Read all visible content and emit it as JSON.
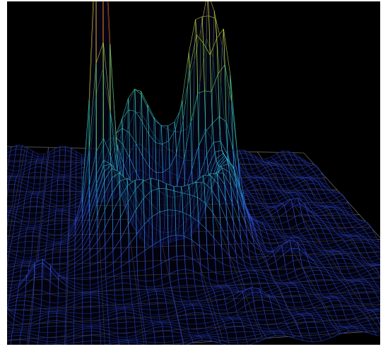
{
  "chart_data": {
    "type": "surface",
    "title": "",
    "xlabel": "",
    "ylabel": "",
    "zlabel": "",
    "grid": true,
    "background": "#000000",
    "floor_grid_color": "#8a8a8a",
    "colormap": [
      "#1a2a8a",
      "#3a5cff",
      "#30c0ff",
      "#40e0a0",
      "#c8f03c",
      "#ffd020",
      "#ff3010"
    ],
    "surface": {
      "x_range": [
        -1,
        1
      ],
      "y_range": [
        -1,
        1
      ],
      "z_range": [
        0,
        1
      ],
      "peaks": [
        {
          "x": -0.28,
          "y": 0.18,
          "height": 1.0,
          "width": 0.035
        },
        {
          "x": 0.28,
          "y": 0.38,
          "height": 0.55,
          "width": 0.04
        },
        {
          "x": 0.34,
          "y": 0.3,
          "height": 0.48,
          "width": 0.045
        },
        {
          "x": 0.2,
          "y": 0.32,
          "height": 0.38,
          "width": 0.045
        },
        {
          "x": -0.86,
          "y": 0.02,
          "height": 0.22,
          "width": 0.04
        },
        {
          "x": -0.1,
          "y": 0.4,
          "height": 0.18,
          "width": 0.06
        },
        {
          "x": -0.55,
          "y": -0.35,
          "height": 0.1,
          "width": 0.05
        },
        {
          "x": 0.55,
          "y": -0.2,
          "height": 0.08,
          "width": 0.05
        },
        {
          "x": 0.7,
          "y": 0.3,
          "height": 0.07,
          "width": 0.05
        },
        {
          "x": -0.7,
          "y": -0.65,
          "height": 0.06,
          "width": 0.05
        },
        {
          "x": 0.3,
          "y": -0.6,
          "height": 0.05,
          "width": 0.05
        }
      ],
      "ring": {
        "x": 0.02,
        "y": 0.1,
        "radius": 0.28,
        "height": 0.28,
        "thickness": 0.07
      }
    }
  }
}
